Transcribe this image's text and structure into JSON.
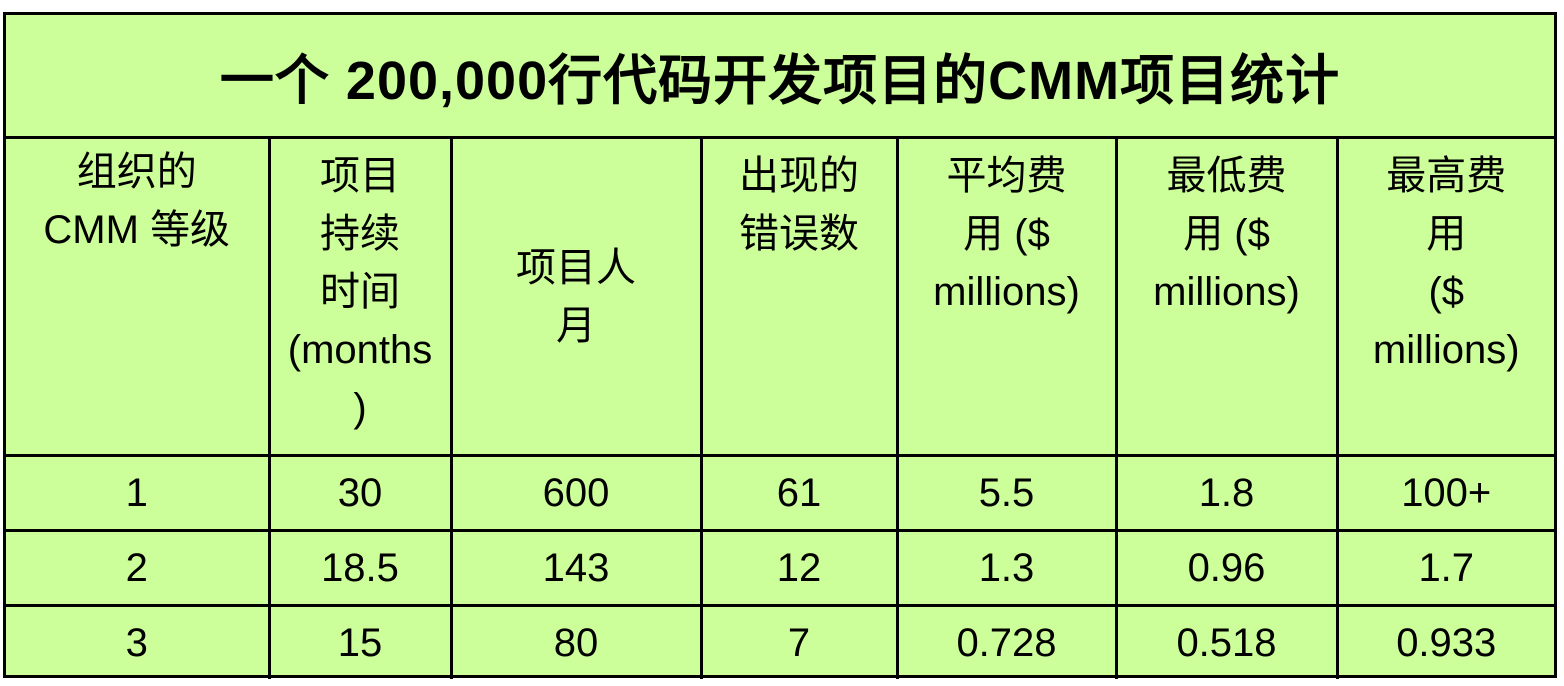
{
  "title": "一个 200,000行代码开发项目的CMM项目统计",
  "columns": [
    "组织的\nCMM 等级",
    "项目\n持续\n时间\n(months\n)",
    "项目人\n月",
    "出现的\n错误数",
    "平均费\n用 ($\nmillions)",
    "最低费\n用 ($\nmillions)",
    "最高费\n用\n($\nmillions)"
  ],
  "rows": [
    [
      "1",
      "30",
      "600",
      "61",
      "5.5",
      "1.8",
      "100+"
    ],
    [
      "2",
      "18.5",
      "143",
      "12",
      "1.3",
      "0.96",
      "1.7"
    ],
    [
      "3",
      "15",
      "80",
      "7",
      "0.728",
      "0.518",
      "0.933"
    ]
  ],
  "colors": {
    "background": "#ccff99",
    "border": "#000000",
    "text": "#000000"
  }
}
